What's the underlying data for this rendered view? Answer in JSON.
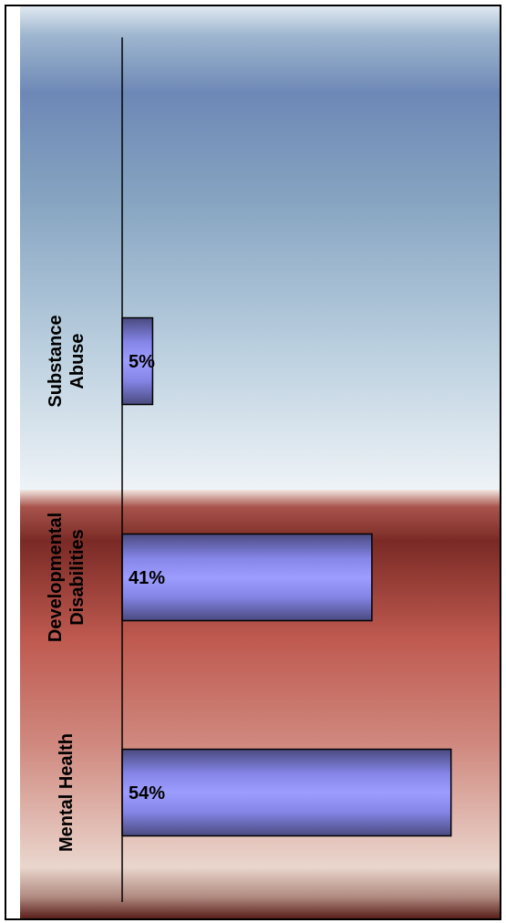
{
  "chart_data": {
    "type": "bar",
    "orientation": "horizontal",
    "categories": [
      "Substance Abuse",
      "Developmental Disabilities",
      "Mental Health"
    ],
    "category_label_lines": [
      [
        "Substance",
        "Abuse"
      ],
      [
        "Developmental",
        "Disabilities"
      ],
      [
        "Mental Health"
      ]
    ],
    "values": [
      5,
      41,
      54
    ],
    "value_labels": [
      "5%",
      "41%",
      "54%"
    ],
    "unit": "%",
    "xlim": [
      0,
      60
    ],
    "grid": false,
    "legend": "none",
    "colors": {
      "bar_light": "#9a9aff",
      "bar_dark": "#505088",
      "bar_edge": "#000000",
      "bg_blue_top": "#d6e4ef",
      "bg_blue_mid": "#6f8db8",
      "bg_blue_low": "#e8f0f6",
      "bg_red_top": "#7a2a26",
      "bg_red_mid": "#c0574f",
      "bg_red_low": "#ecd9d1",
      "bg_red_bottom": "#5a1e1a"
    }
  }
}
